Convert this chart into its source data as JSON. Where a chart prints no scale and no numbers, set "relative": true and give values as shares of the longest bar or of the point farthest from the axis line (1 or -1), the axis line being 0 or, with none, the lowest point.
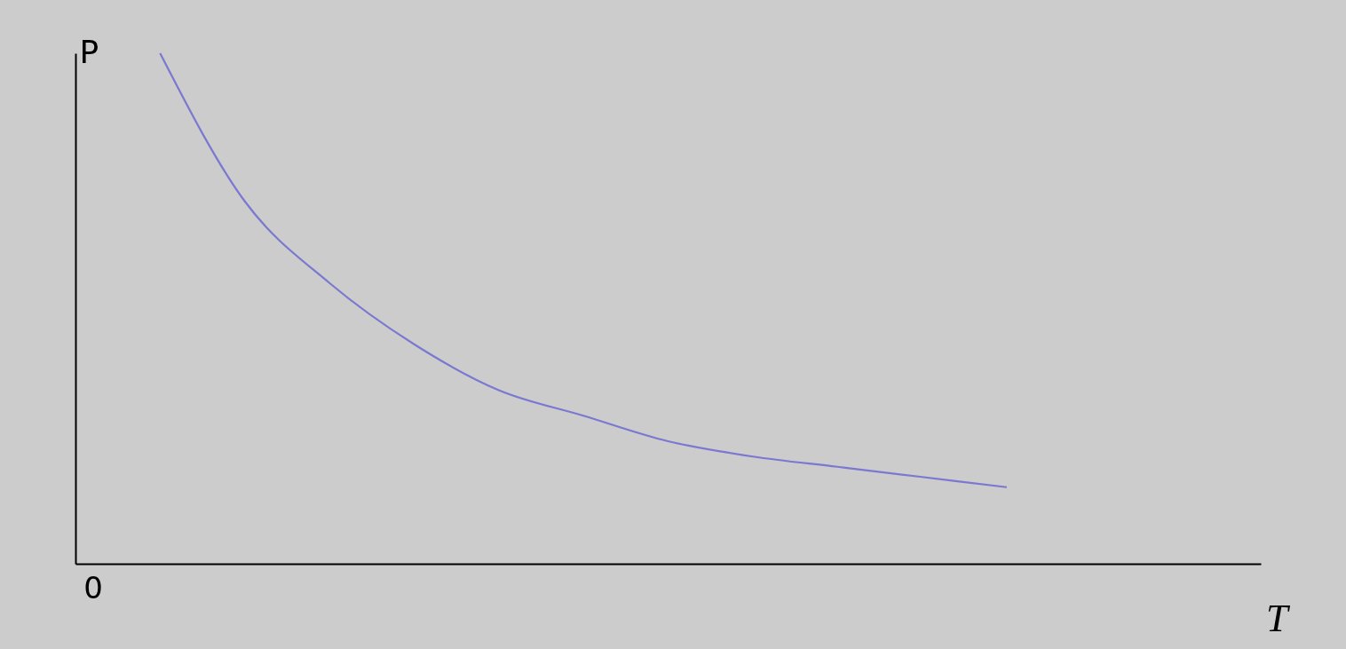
{
  "chart_data": {
    "type": "line",
    "relative": true,
    "xlabel": "T",
    "ylabel": "P",
    "annotations": [
      "0"
    ],
    "categories": [
      null,
      null,
      null,
      null,
      null,
      null,
      null,
      null,
      null,
      null,
      null,
      null,
      null,
      null,
      null
    ],
    "series": [
      {
        "color": "#7a78d0",
        "values": [
          null,
          1,
          0.71,
          0.55,
          0.43,
          0.34,
          0.29,
          0.24,
          0.21,
          0.19,
          0.17,
          0.15,
          null,
          null,
          null
        ]
      }
    ],
    "grid": false,
    "marker": "none",
    "line_style": "solid"
  }
}
